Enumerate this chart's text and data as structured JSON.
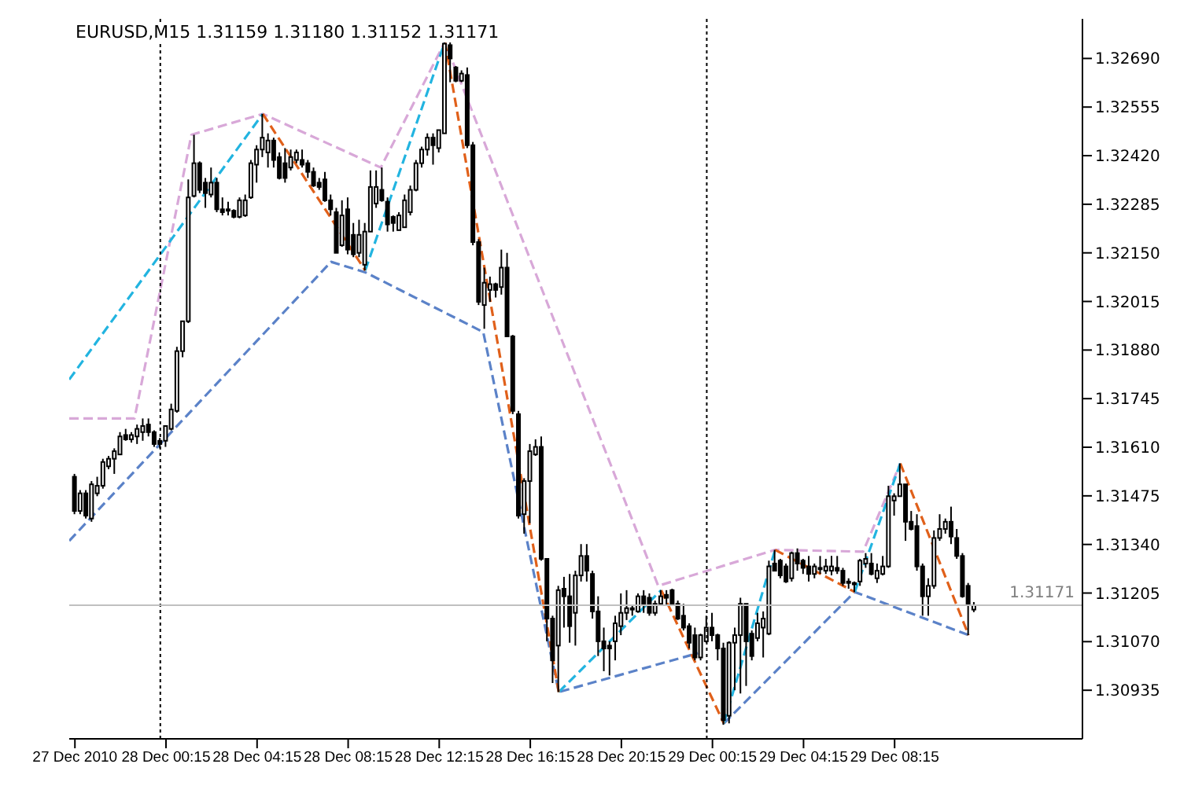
{
  "chart_data": {
    "type": "candlestick",
    "title": "EURUSD,M15  1.31159 1.31180 1.31152 1.31171",
    "color": "#000000",
    "x": [
      "2010-12-27T20:15",
      "2010-12-27T20:30",
      "2010-12-27T20:45",
      "2010-12-27T21:00",
      "2010-12-27T21:15",
      "2010-12-27T21:30",
      "2010-12-27T21:45",
      "2010-12-27T22:00",
      "2010-12-27T22:15",
      "2010-12-27T22:30",
      "2010-12-27T22:45",
      "2010-12-27T23:00",
      "2010-12-27T23:15",
      "2010-12-27T23:30",
      "2010-12-27T23:45",
      "2010-12-28T00:00",
      "2010-12-28T00:15",
      "2010-12-28T00:30",
      "2010-12-28T00:45",
      "2010-12-28T01:00",
      "2010-12-28T01:15",
      "2010-12-28T01:30",
      "2010-12-28T01:45",
      "2010-12-28T02:00",
      "2010-12-28T02:15",
      "2010-12-28T02:30",
      "2010-12-28T02:45",
      "2010-12-28T03:00",
      "2010-12-28T03:15",
      "2010-12-28T03:30",
      "2010-12-28T03:45",
      "2010-12-28T04:00",
      "2010-12-28T04:15",
      "2010-12-28T04:30",
      "2010-12-28T04:45",
      "2010-12-28T05:00",
      "2010-12-28T05:15",
      "2010-12-28T05:30",
      "2010-12-28T05:45",
      "2010-12-28T06:00",
      "2010-12-28T06:15",
      "2010-12-28T06:30",
      "2010-12-28T06:45",
      "2010-12-28T07:00",
      "2010-12-28T07:15",
      "2010-12-28T07:30",
      "2010-12-28T07:45",
      "2010-12-28T08:00",
      "2010-12-28T08:15",
      "2010-12-28T08:30",
      "2010-12-28T08:45",
      "2010-12-28T09:00",
      "2010-12-28T09:15",
      "2010-12-28T09:30",
      "2010-12-28T09:45",
      "2010-12-28T10:00",
      "2010-12-28T10:15",
      "2010-12-28T10:30",
      "2010-12-28T10:45",
      "2010-12-28T11:00",
      "2010-12-28T11:15",
      "2010-12-28T11:30",
      "2010-12-28T11:45",
      "2010-12-28T12:00",
      "2010-12-28T12:15",
      "2010-12-28T12:30",
      "2010-12-28T12:45",
      "2010-12-28T13:00",
      "2010-12-28T13:15",
      "2010-12-28T13:30",
      "2010-12-28T13:45",
      "2010-12-28T14:00",
      "2010-12-28T14:15",
      "2010-12-28T14:30",
      "2010-12-28T14:45",
      "2010-12-28T15:00",
      "2010-12-28T15:15",
      "2010-12-28T15:30",
      "2010-12-28T15:45",
      "2010-12-28T16:00",
      "2010-12-28T16:15",
      "2010-12-28T16:30",
      "2010-12-28T16:45",
      "2010-12-28T17:00",
      "2010-12-28T17:15",
      "2010-12-28T17:30",
      "2010-12-28T17:45",
      "2010-12-28T18:00",
      "2010-12-28T18:15",
      "2010-12-28T18:30",
      "2010-12-28T18:45",
      "2010-12-28T19:00",
      "2010-12-28T19:15",
      "2010-12-28T19:30",
      "2010-12-28T19:45",
      "2010-12-28T20:00",
      "2010-12-28T20:15",
      "2010-12-28T20:30",
      "2010-12-28T20:45",
      "2010-12-28T21:00",
      "2010-12-28T21:15",
      "2010-12-28T21:30",
      "2010-12-28T21:45",
      "2010-12-28T22:00",
      "2010-12-28T22:15",
      "2010-12-28T22:30",
      "2010-12-28T22:45",
      "2010-12-28T23:00",
      "2010-12-28T23:15",
      "2010-12-28T23:30",
      "2010-12-28T23:45",
      "2010-12-29T00:00",
      "2010-12-29T00:15",
      "2010-12-29T00:30",
      "2010-12-29T00:45",
      "2010-12-29T01:00",
      "2010-12-29T01:15",
      "2010-12-29T01:30",
      "2010-12-29T01:45",
      "2010-12-29T02:00",
      "2010-12-29T02:15",
      "2010-12-29T02:30",
      "2010-12-29T02:45",
      "2010-12-29T03:00",
      "2010-12-29T03:15",
      "2010-12-29T03:30",
      "2010-12-29T03:45",
      "2010-12-29T04:00",
      "2010-12-29T04:15",
      "2010-12-29T04:30",
      "2010-12-29T04:45",
      "2010-12-29T05:00",
      "2010-12-29T05:15",
      "2010-12-29T05:30",
      "2010-12-29T05:45",
      "2010-12-29T06:00",
      "2010-12-29T06:15",
      "2010-12-29T06:30",
      "2010-12-29T06:45",
      "2010-12-29T07:00",
      "2010-12-29T07:15",
      "2010-12-29T07:30",
      "2010-12-29T07:45",
      "2010-12-29T08:00",
      "2010-12-29T08:15",
      "2010-12-29T08:30",
      "2010-12-29T08:45",
      "2010-12-29T09:00",
      "2010-12-29T09:15",
      "2010-12-29T09:30",
      "2010-12-29T09:45",
      "2010-12-29T10:00",
      "2010-12-29T10:15",
      "2010-12-29T10:30",
      "2010-12-29T10:45",
      "2010-12-29T11:00",
      "2010-12-29T11:15",
      "2010-12-29T11:30",
      "2010-12-29T11:45"
    ],
    "ohlc": [
      [
        1.31528,
        1.31536,
        1.31424,
        1.31433
      ],
      [
        1.31433,
        1.31491,
        1.31424,
        1.31482
      ],
      [
        1.31482,
        1.31491,
        1.31412,
        1.3142
      ],
      [
        1.31412,
        1.31516,
        1.31403,
        1.31507
      ],
      [
        1.31482,
        1.31528,
        1.31474,
        1.31503
      ],
      [
        1.31503,
        1.31578,
        1.31495,
        1.31569
      ],
      [
        1.31557,
        1.31586,
        1.31549,
        1.31578
      ],
      [
        1.31578,
        1.31607,
        1.31536,
        1.31599
      ],
      [
        1.3159,
        1.31652,
        1.3159,
        1.3164
      ],
      [
        1.31644,
        1.31661,
        1.31628,
        1.31632
      ],
      [
        1.31632,
        1.31652,
        1.31623,
        1.31644
      ],
      [
        1.3164,
        1.31673,
        1.31619,
        1.31661
      ],
      [
        1.31652,
        1.3169,
        1.31628,
        1.31669
      ],
      [
        1.31673,
        1.3169,
        1.3164,
        1.31652
      ],
      [
        1.31652,
        1.31657,
        1.31611,
        1.31619
      ],
      [
        1.31628,
        1.31636,
        1.31607,
        1.31619
      ],
      [
        1.31628,
        1.31669,
        1.31611,
        1.31669
      ],
      [
        1.31661,
        1.31731,
        1.31657,
        1.31715
      ],
      [
        1.31711,
        1.31889,
        1.31706,
        1.31877
      ],
      [
        1.31877,
        1.3196,
        1.3186,
        1.3196
      ],
      [
        1.3196,
        1.32354,
        1.31955,
        1.32304
      ],
      [
        1.32308,
        1.32478,
        1.32304,
        1.32399
      ],
      [
        1.32399,
        1.32404,
        1.32316,
        1.32325
      ],
      [
        1.32345,
        1.32358,
        1.32275,
        1.32316
      ],
      [
        1.32312,
        1.32387,
        1.32304,
        1.32345
      ],
      [
        1.32345,
        1.32358,
        1.32263,
        1.32271
      ],
      [
        1.32271,
        1.32304,
        1.32254,
        1.32263
      ],
      [
        1.32267,
        1.32292,
        1.32254,
        1.32271
      ],
      [
        1.32267,
        1.32271,
        1.32246,
        1.3225
      ],
      [
        1.3225,
        1.32304,
        1.32246,
        1.32296
      ],
      [
        1.32254,
        1.32312,
        1.3225,
        1.32296
      ],
      [
        1.32304,
        1.32408,
        1.323,
        1.32399
      ],
      [
        1.32395,
        1.32449,
        1.32345,
        1.32437
      ],
      [
        1.32437,
        1.32536,
        1.32416,
        1.3247
      ],
      [
        1.32429,
        1.32482,
        1.32387,
        1.32462
      ],
      [
        1.32462,
        1.3247,
        1.32387,
        1.32408
      ],
      [
        1.32416,
        1.32429,
        1.32354,
        1.32358
      ],
      [
        1.32399,
        1.32441,
        1.32345,
        1.32358
      ],
      [
        1.32387,
        1.32437,
        1.32379,
        1.32416
      ],
      [
        1.32408,
        1.32437,
        1.32399,
        1.32429
      ],
      [
        1.32408,
        1.32437,
        1.32387,
        1.32395
      ],
      [
        1.32399,
        1.32408,
        1.32358,
        1.32375
      ],
      [
        1.32375,
        1.32387,
        1.32333,
        1.32337
      ],
      [
        1.32345,
        1.32358,
        1.32325,
        1.32333
      ],
      [
        1.32354,
        1.32375,
        1.32292,
        1.32296
      ],
      [
        1.32296,
        1.32312,
        1.32254,
        1.32271
      ],
      [
        1.32263,
        1.32275,
        1.3215,
        1.3215
      ],
      [
        1.32171,
        1.32296,
        1.32167,
        1.32254
      ],
      [
        1.32271,
        1.32304,
        1.32146,
        1.32159
      ],
      [
        1.322,
        1.32233,
        1.32138,
        1.32146
      ],
      [
        1.3215,
        1.32242,
        1.32138,
        1.322
      ],
      [
        1.32117,
        1.32233,
        1.32101,
        1.32209
      ],
      [
        1.32209,
        1.32379,
        1.32209,
        1.32333
      ],
      [
        1.32287,
        1.32379,
        1.32275,
        1.32333
      ],
      [
        1.32325,
        1.32387,
        1.32292,
        1.32296
      ],
      [
        1.32292,
        1.32304,
        1.32209,
        1.32229
      ],
      [
        1.3225,
        1.32254,
        1.32209,
        1.32233
      ],
      [
        1.32213,
        1.32263,
        1.32213,
        1.32254
      ],
      [
        1.32221,
        1.32312,
        1.32221,
        1.32296
      ],
      [
        1.32263,
        1.32337,
        1.32254,
        1.32325
      ],
      [
        1.32325,
        1.32408,
        1.32321,
        1.32399
      ],
      [
        1.32399,
        1.32445,
        1.32387,
        1.32437
      ],
      [
        1.32437,
        1.32482,
        1.3242,
        1.3247
      ],
      [
        1.3247,
        1.32482,
        1.32395,
        1.32449
      ],
      [
        1.32441,
        1.32491,
        1.32429,
        1.32491
      ],
      [
        1.32482,
        1.32736,
        1.32482,
        1.32731
      ],
      [
        1.32727,
        1.3274,
        1.32624,
        1.3269
      ],
      [
        1.32665,
        1.32669,
        1.32624,
        1.32628
      ],
      [
        1.32628,
        1.32657,
        1.32624,
        1.32648
      ],
      [
        1.32644,
        1.32665,
        1.32441,
        1.32449
      ],
      [
        1.32449,
        1.32458,
        1.32171,
        1.3218
      ],
      [
        1.3218,
        1.32188,
        1.32005,
        1.32014
      ],
      [
        1.32005,
        1.32109,
        1.31939,
        1.32067
      ],
      [
        1.32047,
        1.32084,
        1.32014,
        1.32063
      ],
      [
        1.32063,
        1.32067,
        1.32026,
        1.32047
      ],
      [
        1.32055,
        1.32159,
        1.32034,
        1.32109
      ],
      [
        1.32109,
        1.3215,
        1.31918,
        1.31918
      ],
      [
        1.31918,
        1.31922,
        1.31702,
        1.31711
      ],
      [
        1.31702,
        1.31711,
        1.31412,
        1.3142
      ],
      [
        1.31424,
        1.31524,
        1.3137,
        1.31516
      ],
      [
        1.31516,
        1.31619,
        1.31399,
        1.31599
      ],
      [
        1.3159,
        1.31632,
        1.31586,
        1.31611
      ],
      [
        1.31611,
        1.3164,
        1.31295,
        1.313
      ],
      [
        1.313,
        1.313,
        1.31071,
        1.31134
      ],
      [
        1.31134,
        1.31142,
        1.30955,
        1.31018
      ],
      [
        1.31059,
        1.31225,
        1.3093,
        1.31213
      ],
      [
        1.31217,
        1.3125,
        1.31109,
        1.31196
      ],
      [
        1.31196,
        1.31258,
        1.31067,
        1.31113
      ],
      [
        1.3115,
        1.31267,
        1.31059,
        1.31254
      ],
      [
        1.31254,
        1.31341,
        1.31237,
        1.31308
      ],
      [
        1.31308,
        1.31341,
        1.31237,
        1.31267
      ],
      [
        1.31258,
        1.31267,
        1.31134,
        1.31154
      ],
      [
        1.31154,
        1.31196,
        1.3103,
        1.31071
      ],
      [
        1.31071,
        1.31109,
        1.30988,
        1.31051
      ],
      [
        1.31059,
        1.31071,
        1.30976,
        1.31051
      ],
      [
        1.31071,
        1.31142,
        1.31018,
        1.31121
      ],
      [
        1.31113,
        1.31204,
        1.31088,
        1.3115
      ],
      [
        1.3115,
        1.31213,
        1.3113,
        1.31163
      ],
      [
        1.31159,
        1.31171,
        1.31142,
        1.31163
      ],
      [
        1.31154,
        1.31204,
        1.3115,
        1.31196
      ],
      [
        1.31196,
        1.31213,
        1.3115,
        1.31171
      ],
      [
        1.31192,
        1.31204,
        1.31142,
        1.3115
      ],
      [
        1.3115,
        1.31184,
        1.31142,
        1.31175
      ],
      [
        1.31175,
        1.31213,
        1.31171,
        1.31196
      ],
      [
        1.312,
        1.31213,
        1.31171,
        1.31192
      ],
      [
        1.31213,
        1.31217,
        1.31171,
        1.31175
      ],
      [
        1.31175,
        1.31184,
        1.3113,
        1.31134
      ],
      [
        1.31142,
        1.31175,
        1.31101,
        1.31109
      ],
      [
        1.31113,
        1.31121,
        1.31051,
        1.31067
      ],
      [
        1.31088,
        1.31109,
        1.31018,
        1.31026
      ],
      [
        1.31026,
        1.31092,
        1.31018,
        1.31088
      ],
      [
        1.31071,
        1.31142,
        1.31067,
        1.31109
      ],
      [
        1.31109,
        1.3115,
        1.31071,
        1.31088
      ],
      [
        1.31088,
        1.31092,
        1.31018,
        1.31051
      ],
      [
        1.31051,
        1.31067,
        1.30839,
        1.30852
      ],
      [
        1.30864,
        1.31071,
        1.30843,
        1.31067
      ],
      [
        1.31067,
        1.31109,
        1.30935,
        1.31088
      ],
      [
        1.31088,
        1.31192,
        1.30926,
        1.31175
      ],
      [
        1.31175,
        1.31175,
        1.30947,
        1.31071
      ],
      [
        1.31092,
        1.31101,
        1.31018,
        1.3103
      ],
      [
        1.3108,
        1.3115,
        1.31071,
        1.31121
      ],
      [
        1.31109,
        1.31154,
        1.31026,
        1.31134
      ],
      [
        1.31092,
        1.31295,
        1.31088,
        1.31279
      ],
      [
        1.31287,
        1.31325,
        1.31267,
        1.31267
      ],
      [
        1.31295,
        1.313,
        1.31246,
        1.31254
      ],
      [
        1.31279,
        1.31287,
        1.31233,
        1.31237
      ],
      [
        1.31246,
        1.3132,
        1.31237,
        1.31316
      ],
      [
        1.31316,
        1.31329,
        1.31267,
        1.31287
      ],
      [
        1.31295,
        1.313,
        1.31258,
        1.31275
      ],
      [
        1.31279,
        1.31308,
        1.31237,
        1.31258
      ],
      [
        1.31258,
        1.31287,
        1.31246,
        1.31279
      ],
      [
        1.31271,
        1.31308,
        1.31258,
        1.31275
      ],
      [
        1.31267,
        1.313,
        1.31258,
        1.31279
      ],
      [
        1.31267,
        1.31308,
        1.31254,
        1.31279
      ],
      [
        1.31275,
        1.31308,
        1.31258,
        1.31267
      ],
      [
        1.31267,
        1.31275,
        1.31225,
        1.31233
      ],
      [
        1.31237,
        1.31246,
        1.31217,
        1.31233
      ],
      [
        1.31233,
        1.31237,
        1.31208,
        1.31229
      ],
      [
        1.31237,
        1.313,
        1.31225,
        1.31295
      ],
      [
        1.31287,
        1.31316,
        1.31275,
        1.313
      ],
      [
        1.31287,
        1.31316,
        1.31254,
        1.31258
      ],
      [
        1.31246,
        1.31287,
        1.31233,
        1.31267
      ],
      [
        1.31258,
        1.31308,
        1.31254,
        1.31279
      ],
      [
        1.31279,
        1.31503,
        1.31275,
        1.31474
      ],
      [
        1.31462,
        1.31482,
        1.3142,
        1.31474
      ],
      [
        1.31474,
        1.31565,
        1.31474,
        1.31507
      ],
      [
        1.31507,
        1.31507,
        1.3135,
        1.31403
      ],
      [
        1.31403,
        1.31433,
        1.31379,
        1.31383
      ],
      [
        1.31391,
        1.31424,
        1.31267,
        1.31279
      ],
      [
        1.31279,
        1.31287,
        1.31142,
        1.31196
      ],
      [
        1.31196,
        1.31246,
        1.31142,
        1.31225
      ],
      [
        1.31225,
        1.31379,
        1.31217,
        1.31358
      ],
      [
        1.31358,
        1.31424,
        1.3135,
        1.31383
      ],
      [
        1.31383,
        1.31412,
        1.3137,
        1.31403
      ],
      [
        1.31403,
        1.31445,
        1.31341,
        1.31362
      ],
      [
        1.31358,
        1.31383,
        1.313,
        1.31308
      ],
      [
        1.31308,
        1.31316,
        1.31192,
        1.31196
      ],
      [
        1.31225,
        1.31233,
        1.31088,
        1.31175
      ],
      [
        1.31159,
        1.3118,
        1.31152,
        1.31171
      ]
    ],
    "series": [
      {
        "type": "line",
        "color": "#d8a8d8",
        "line_style": "dashed",
        "x": [
          "2010-12-27T20:00",
          "2010-12-27T22:52",
          "2010-12-28T01:22",
          "2010-12-28T04:30",
          "2010-12-28T09:41",
          "2010-12-28T12:30",
          "2010-12-28T21:52",
          "2010-12-29T03:00",
          "2010-12-29T06:52",
          "2010-12-29T08:30"
        ],
        "values": [
          1.3169,
          1.3169,
          1.32478,
          1.32536,
          1.32387,
          1.32736,
          1.31225,
          1.31325,
          1.3132,
          1.31565
        ]
      },
      {
        "type": "line",
        "color": "#5b82c8",
        "line_style": "dashed",
        "x": [
          "2010-12-27T20:00",
          "2010-12-28T07:30",
          "2010-12-28T09:00",
          "2010-12-28T14:11",
          "2010-12-28T17:30",
          "2010-12-28T23:37",
          "2010-12-29T00:00",
          "2010-12-29T00:45",
          "2010-12-29T06:30",
          "2010-12-29T11:30"
        ],
        "values": [
          1.3135,
          1.32125,
          1.32096,
          1.3193,
          1.3093,
          1.31038,
          null,
          1.30843,
          1.31208,
          1.31088
        ]
      },
      {
        "type": "line",
        "color": "#22b4e0",
        "line_style": "dashed",
        "x": [
          "2010-12-27T20:00",
          "2010-12-28T04:30",
          "2010-12-28T07:00",
          "2010-12-28T09:00",
          "2010-12-28T12:30",
          "2010-12-28T15:00",
          "2010-12-28T17:30",
          "2010-12-28T22:00",
          "2010-12-28T23:00",
          "2010-12-29T00:45",
          "2010-12-29T03:00",
          "2010-12-29T04:00",
          "2010-12-29T06:30",
          "2010-12-29T08:30"
        ],
        "values": [
          1.31798,
          1.32536,
          null,
          1.32101,
          1.32736,
          null,
          1.3093,
          1.31213,
          null,
          1.30843,
          1.31325,
          null,
          1.31208,
          1.31565
        ]
      },
      {
        "type": "line",
        "color": "#e0601a",
        "line_style": "dashed",
        "x": [
          "2010-12-28T04:30",
          "2010-12-28T09:00",
          "2010-12-28T10:00",
          "2010-12-28T12:30",
          "2010-12-28T17:30",
          "2010-12-28T19:00",
          "2010-12-28T22:00",
          "2010-12-29T00:45",
          "2010-12-29T02:00",
          "2010-12-29T03:00",
          "2010-12-29T06:30",
          "2010-12-29T07:00",
          "2010-12-29T08:30",
          "2010-12-29T11:30"
        ],
        "values": [
          1.32536,
          1.32101,
          null,
          1.32736,
          1.3093,
          null,
          1.31213,
          1.30843,
          null,
          1.31325,
          1.31208,
          null,
          1.31565,
          1.31088
        ]
      }
    ],
    "xlim": [
      "2010-12-27T20:00",
      "2010-12-29T16:30"
    ],
    "xticks": [
      {
        "value": "2010-12-27T20:15",
        "label": "27 Dec 2010"
      },
      {
        "value": "2010-12-28T00:15",
        "label": "28 Dec 00:15"
      },
      {
        "value": "2010-12-28T04:15",
        "label": "28 Dec 04:15"
      },
      {
        "value": "2010-12-28T08:15",
        "label": "28 Dec 08:15"
      },
      {
        "value": "2010-12-28T12:15",
        "label": "28 Dec 12:15"
      },
      {
        "value": "2010-12-28T16:15",
        "label": "28 Dec 16:15"
      },
      {
        "value": "2010-12-28T20:15",
        "label": "28 Dec 20:15"
      },
      {
        "value": "2010-12-29T00:15",
        "label": "29 Dec 00:15"
      },
      {
        "value": "2010-12-29T04:15",
        "label": "29 Dec 04:15"
      },
      {
        "value": "2010-12-29T08:15",
        "label": "29 Dec 08:15"
      }
    ],
    "ylim": [
      1.308,
      1.328
    ],
    "yticks": [
      1.30935,
      {
        "value": 1.3107,
        "label": "1.31070"
      },
      1.31205,
      {
        "value": 1.3134,
        "label": "1.31340"
      },
      1.31475,
      {
        "value": 1.3161,
        "label": "1.31610"
      },
      1.31745,
      {
        "value": 1.3188,
        "label": "1.31880"
      },
      1.32015,
      {
        "value": 1.3215,
        "label": "1.32150"
      },
      1.32285,
      {
        "value": 1.3242,
        "label": "1.32420"
      },
      1.32555,
      {
        "value": 1.3269,
        "label": "1.32690"
      }
    ],
    "ref_lines": [
      {
        "axis": "x",
        "value": "2010-12-28T00:00",
        "color": "#000000",
        "line_style": "dotted"
      },
      {
        "axis": "x",
        "value": "2010-12-29T00:00",
        "color": "#000000",
        "line_style": "dotted"
      },
      {
        "axis": "y",
        "value": 1.31171,
        "label": "1.31171",
        "color": "#c0c0c0",
        "line_style": "solid"
      }
    ]
  }
}
